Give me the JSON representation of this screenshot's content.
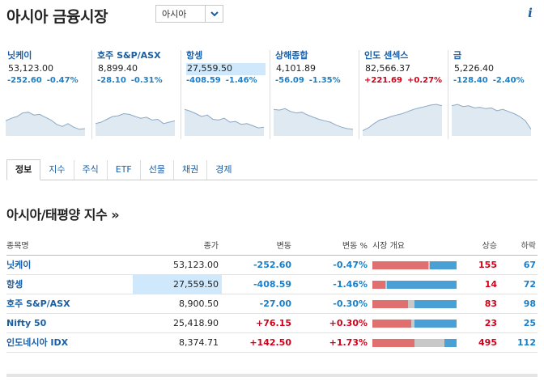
{
  "header": {
    "title": "아시아 금융시장",
    "region_select": "아시아"
  },
  "colors": {
    "link": "#1a5fa6",
    "negative": "#1a7fc8",
    "positive": "#d0021b",
    "bar_up": "#e07070",
    "bar_unch": "#c8c8c8",
    "bar_down": "#4a9fd5",
    "highlight": "#cfe8fb",
    "sparkline_fill": "#dfe9f2",
    "sparkline_line": "#8aa9c6"
  },
  "tiles": [
    {
      "name": "닛케이",
      "price": "53,123.00",
      "change": "-252.60",
      "pct": "-0.47%",
      "dir": "neg",
      "highlight": false,
      "spark": [
        0.62,
        0.55,
        0.5,
        0.4,
        0.38,
        0.46,
        0.44,
        0.52,
        0.6,
        0.72,
        0.78,
        0.7,
        0.8,
        0.86,
        0.84
      ]
    },
    {
      "name": "호주 S&P/ASX",
      "price": "8,899.40",
      "change": "-28.10",
      "pct": "-0.31%",
      "dir": "neg",
      "highlight": false,
      "spark": [
        0.7,
        0.66,
        0.58,
        0.5,
        0.48,
        0.42,
        0.44,
        0.5,
        0.55,
        0.52,
        0.6,
        0.58,
        0.7,
        0.66,
        0.62
      ]
    },
    {
      "name": "항셍",
      "price": "27,559.50",
      "change": "-408.59",
      "pct": "-1.46%",
      "dir": "neg",
      "highlight": true,
      "spark": [
        0.3,
        0.35,
        0.42,
        0.5,
        0.46,
        0.58,
        0.6,
        0.55,
        0.66,
        0.64,
        0.72,
        0.7,
        0.76,
        0.82,
        0.8
      ]
    },
    {
      "name": "상해종합",
      "price": "4,101.89",
      "change": "-56.09",
      "pct": "-1.35%",
      "dir": "neg",
      "highlight": false,
      "spark": [
        0.3,
        0.32,
        0.28,
        0.36,
        0.4,
        0.38,
        0.46,
        0.52,
        0.58,
        0.62,
        0.66,
        0.74,
        0.8,
        0.84,
        0.86
      ]
    },
    {
      "name": "인도 센섹스",
      "price": "82,566.37",
      "change": "+221.69",
      "pct": "+0.27%",
      "dir": "pos",
      "highlight": false,
      "spark": [
        0.9,
        0.82,
        0.7,
        0.6,
        0.56,
        0.5,
        0.46,
        0.42,
        0.36,
        0.3,
        0.26,
        0.22,
        0.18,
        0.16,
        0.2
      ]
    },
    {
      "name": "금",
      "price": "5,226.40",
      "change": "-128.40",
      "pct": "-2.40%",
      "dir": "neg",
      "highlight": false,
      "spark": [
        0.2,
        0.16,
        0.22,
        0.2,
        0.26,
        0.24,
        0.28,
        0.26,
        0.34,
        0.3,
        0.36,
        0.42,
        0.5,
        0.62,
        0.86
      ]
    }
  ],
  "tabs": [
    "정보",
    "지수",
    "주식",
    "ETF",
    "선물",
    "채권",
    "경제"
  ],
  "section_title": "아시아/태평양 지수 »",
  "table": {
    "headers": {
      "name": "종목명",
      "price": "종가",
      "change": "변동",
      "pct": "변동 %",
      "overview": "시장 개요",
      "up": "상승",
      "down": "하락"
    },
    "rows": [
      {
        "name": "닛케이",
        "price": "53,123.00",
        "change": "-252.60",
        "pct": "-0.47%",
        "dir": "neg",
        "up": "155",
        "down": "67",
        "highlight": false,
        "bar": [
          0.66,
          0.02,
          0.32
        ]
      },
      {
        "name": "항셍",
        "price": "27,559.50",
        "change": "-408.59",
        "pct": "-1.46%",
        "dir": "neg",
        "up": "14",
        "down": "72",
        "highlight": true,
        "bar": [
          0.15,
          0.02,
          0.83
        ]
      },
      {
        "name": "호주 S&P/ASX",
        "price": "8,900.50",
        "change": "-27.00",
        "pct": "-0.30%",
        "dir": "neg",
        "up": "83",
        "down": "98",
        "highlight": false,
        "bar": [
          0.42,
          0.08,
          0.5
        ]
      },
      {
        "name": "Nifty 50",
        "price": "25,418.90",
        "change": "+76.15",
        "pct": "+0.30%",
        "dir": "pos",
        "up": "23",
        "down": "25",
        "highlight": false,
        "bar": [
          0.46,
          0.04,
          0.5
        ]
      },
      {
        "name": "인도네시아 IDX",
        "price": "8,374.71",
        "change": "+142.50",
        "pct": "+1.73%",
        "dir": "pos",
        "up": "495",
        "down": "112",
        "highlight": false,
        "bar": [
          0.5,
          0.36,
          0.14
        ]
      }
    ]
  }
}
